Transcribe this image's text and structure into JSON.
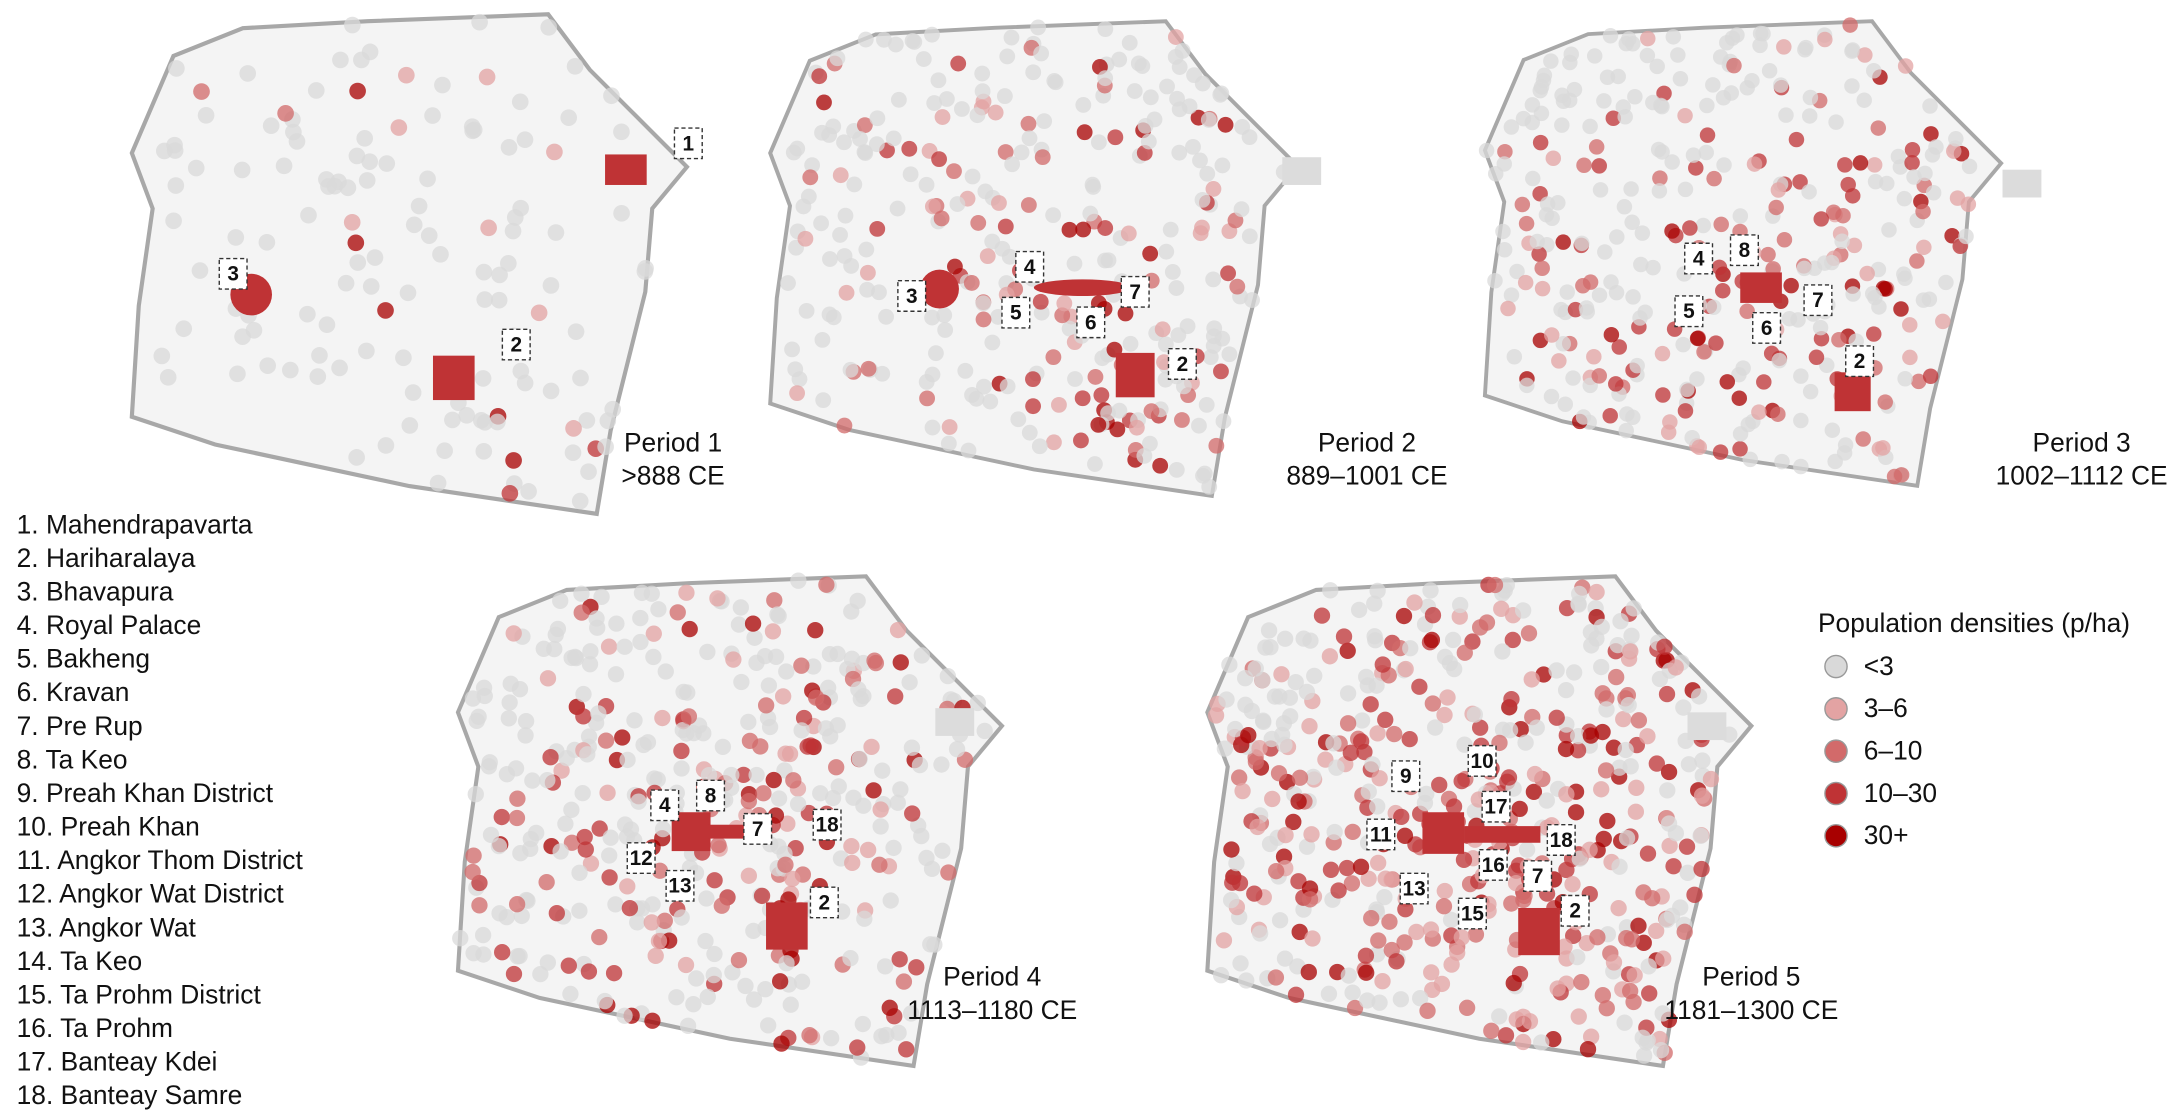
{
  "panels": [
    {
      "period": "Period 1",
      "dates": ">888 CE",
      "sites": [
        "1",
        "2",
        "3"
      ]
    },
    {
      "period": "Period 2",
      "dates": "889–1001 CE",
      "sites": [
        "3",
        "4",
        "5",
        "6",
        "7",
        "2"
      ]
    },
    {
      "period": "Period 3",
      "dates": "1002–1112 CE",
      "sites": [
        "4",
        "8",
        "5",
        "6",
        "7",
        "2"
      ]
    },
    {
      "period": "Period 4",
      "dates": "1113–1180 CE",
      "sites": [
        "4",
        "8",
        "7",
        "18",
        "12",
        "13",
        "2"
      ]
    },
    {
      "period": "Period 5",
      "dates": "1181–1300 CE",
      "sites": [
        "9",
        "10",
        "17",
        "11",
        "18",
        "16",
        "7",
        "13",
        "15",
        "2"
      ]
    }
  ],
  "site_list": [
    "1. Mahendrapavarta",
    "2. Hariharalaya",
    "3. Bhavapura",
    "4. Royal Palace",
    "5. Bakheng",
    "6. Kravan",
    "7. Pre Rup",
    "8. Ta Keo",
    "9. Preah Khan District",
    "10. Preah Khan",
    "11. Angkor Thom District",
    "12. Angkor Wat District",
    "13. Angkor Wat",
    "14. Ta Keo",
    "15. Ta Prohm District",
    "16. Ta Prohm",
    "17. Banteay Kdei",
    "18. Banteay Samre"
  ],
  "legend": {
    "title": "Population densities (p/ha)",
    "items": [
      {
        "label": "<3",
        "color": "#d9d9d9"
      },
      {
        "label": "3–6",
        "color": "#e3a3a3"
      },
      {
        "label": "6–10",
        "color": "#d26a6a"
      },
      {
        "label": "10–30",
        "color": "#bf3335"
      },
      {
        "label": "30+",
        "color": "#a80000"
      }
    ]
  }
}
